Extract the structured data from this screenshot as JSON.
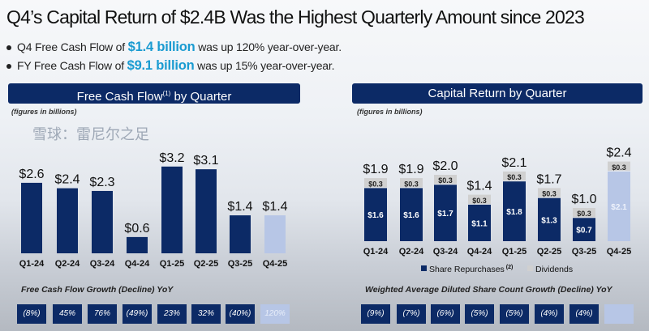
{
  "title": "Q4’s Capital Return of $2.4B Was the Highest Quarterly Amount since 2023",
  "bullets": [
    {
      "pre": "Q4 Free Cash Flow of ",
      "highlight": "$1.4 billion",
      "post": " was up 120% year-over-year."
    },
    {
      "pre": "FY Free Cash Flow of ",
      "highlight": "$9.1 billion",
      "post": " was up 15% year-over-year."
    }
  ],
  "colors": {
    "navy": "#0c2a66",
    "light_bar": "#b7c6e6",
    "dividends": "#d0d0d0",
    "highlight": "#1a9bd1"
  },
  "chart_data": [
    {
      "type": "bar",
      "title": "Free Cash Flow",
      "title_sup": "(1)",
      "title_post": " by Quarter",
      "units_note": "(figures in billions)",
      "categories": [
        "Q1-24",
        "Q2-24",
        "Q3-24",
        "Q4-24",
        "Q1-25",
        "Q2-25",
        "Q3-25",
        "Q4-25"
      ],
      "values": [
        2.6,
        2.4,
        2.3,
        0.6,
        3.2,
        3.1,
        1.4,
        1.4
      ],
      "value_labels": [
        "$2.6",
        "$2.4",
        "$2.3",
        "$0.6",
        "$3.2",
        "$3.1",
        "$1.4",
        "$1.4"
      ],
      "highlighted_category": "Q4-25",
      "growth_label": "Free Cash Flow Growth (Decline) YoY",
      "growth": [
        "(8%)",
        "45%",
        "76%",
        "(49%)",
        "23%",
        "32%",
        "(40%)",
        "120%"
      ]
    },
    {
      "type": "stacked-bar",
      "title": "Capital Return by Quarter",
      "units_note": "(figures in billions)",
      "categories": [
        "Q1-24",
        "Q2-24",
        "Q3-24",
        "Q4-24",
        "Q1-25",
        "Q2-25",
        "Q3-25",
        "Q4-25"
      ],
      "series": [
        {
          "name": "Share Repurchases",
          "name_sup": "(2)",
          "values": [
            1.6,
            1.6,
            1.7,
            1.1,
            1.8,
            1.3,
            0.7,
            2.1
          ],
          "labels": [
            "$1.6",
            "$1.6",
            "$1.7",
            "$1.1",
            "$1.8",
            "$1.3",
            "$0.7",
            "$2.1"
          ]
        },
        {
          "name": "Dividends",
          "values": [
            0.3,
            0.3,
            0.3,
            0.3,
            0.3,
            0.3,
            0.3,
            0.3
          ],
          "labels": [
            "$0.3",
            "$0.3",
            "$0.3",
            "$0.3",
            "$0.3",
            "$0.3",
            "$0.3",
            "$0.3"
          ]
        }
      ],
      "totals": [
        "$1.9",
        "$1.9",
        "$2.0",
        "$1.4",
        "$2.1",
        "$1.7",
        "$1.0",
        "$2.4"
      ],
      "highlighted_category": "Q4-25",
      "growth_label": "Weighted Average Diluted Share Count Growth (Decline) YoY",
      "growth": [
        "(9%)",
        "(7%)",
        "(6%)",
        "(5%)",
        "(5%)",
        "(4%)",
        "(4%)",
        ""
      ]
    }
  ],
  "watermark": "雪球：雷尼尔之足"
}
